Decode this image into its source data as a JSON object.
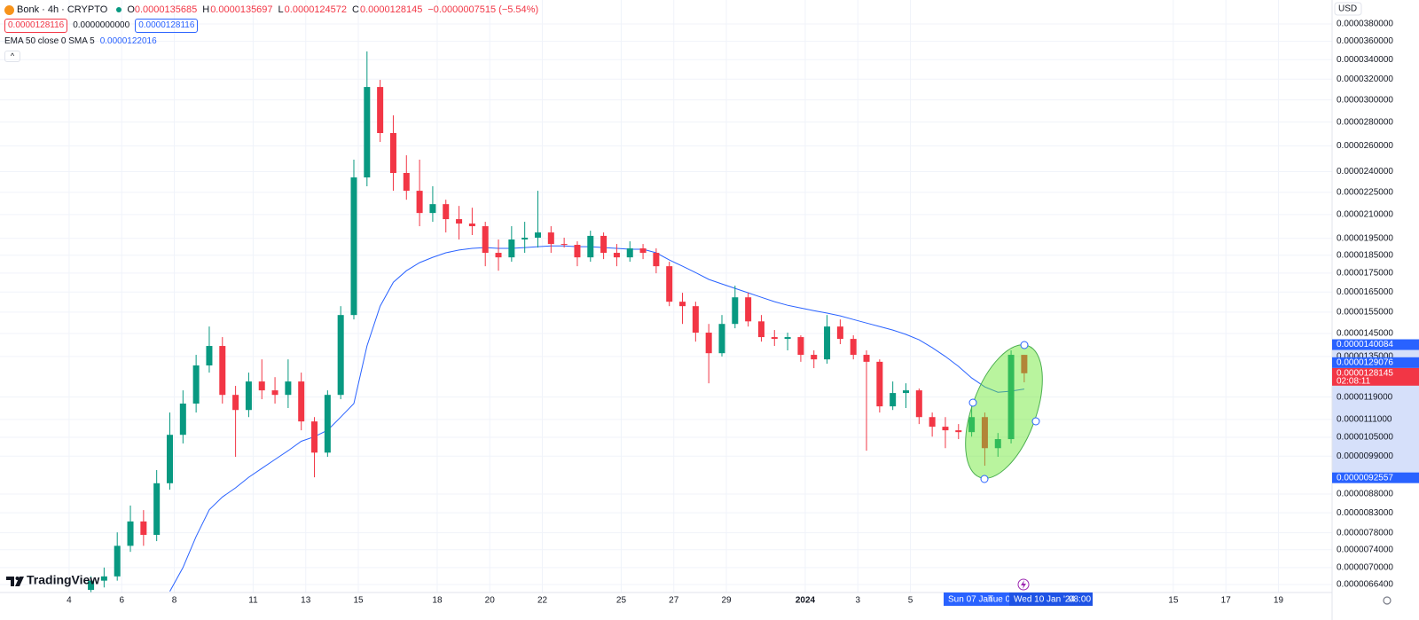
{
  "header": {
    "symbol": "Bonk · 4h · CRYPTO",
    "open_label": "O",
    "open": "0.0000135685",
    "high_label": "H",
    "high": "0.0000135697",
    "low_label": "L",
    "low": "0.0000124572",
    "close_label": "C",
    "close": "0.0000128145",
    "change": "−0.0000007515 (−5.54%)",
    "sell": "0.0000128116",
    "spread": "0.0000000000",
    "buy": "0.0000128116"
  },
  "currency": "USD",
  "brand": "TradingView",
  "time_labels": {
    "range_start": "Sun 07 Jan",
    "range_mid": "Tue 09",
    "cursor_date": "Wed 10 Jan '24",
    "cursor_time": "08:00"
  },
  "chart_data": {
    "type": "candlestick",
    "log_scale": true,
    "grid": true,
    "up_color": "#089981",
    "down_color": "#f23645",
    "xlim": [
      1.37,
      52.04
    ],
    "ylim": [
      6.477e-06,
      4.094e-05
    ],
    "xticks": [
      4,
      6,
      8,
      11,
      13,
      15,
      18,
      20,
      22,
      25,
      27,
      29,
      {
        "value": 32,
        "label": "2024"
      },
      {
        "value": 34,
        "label": "3"
      },
      {
        "value": 36,
        "label": "5"
      },
      {
        "value": 46,
        "label": "15"
      },
      {
        "value": 48,
        "label": "17"
      },
      {
        "value": 50,
        "label": "19"
      }
    ],
    "yticks": [
      {
        "value": 3.8e-05,
        "label": "0.0000380000"
      },
      {
        "value": 3.6e-05,
        "label": "0.0000360000"
      },
      {
        "value": 3.4e-05,
        "label": "0.0000340000"
      },
      {
        "value": 3.2e-05,
        "label": "0.0000320000"
      },
      {
        "value": 3e-05,
        "label": "0.0000300000"
      },
      {
        "value": 2.8e-05,
        "label": "0.0000280000"
      },
      {
        "value": 2.6e-05,
        "label": "0.0000260000"
      },
      {
        "value": 2.4e-05,
        "label": "0.0000240000"
      },
      {
        "value": 2.25e-05,
        "label": "0.0000225000"
      },
      {
        "value": 2.1e-05,
        "label": "0.0000210000"
      },
      {
        "value": 1.95e-05,
        "label": "0.0000195000"
      },
      {
        "value": 1.85e-05,
        "label": "0.0000185000"
      },
      {
        "value": 1.75e-05,
        "label": "0.0000175000"
      },
      {
        "value": 1.65e-05,
        "label": "0.0000165000"
      },
      {
        "value": 1.55e-05,
        "label": "0.0000155000"
      },
      {
        "value": 1.45e-05,
        "label": "0.0000145000"
      },
      {
        "value": 1.35e-05,
        "label": "0.0000135000"
      },
      {
        "value": 1.19e-05,
        "label": "0.0000119000"
      },
      {
        "value": 1.11e-05,
        "label": "0.0000111000"
      },
      {
        "value": 1.05e-05,
        "label": "0.0000105000"
      },
      {
        "value": 9.9e-06,
        "label": "0.0000099000"
      },
      {
        "value": 8.8e-06,
        "label": "0.0000088000"
      },
      {
        "value": 8.3e-06,
        "label": "0.0000083000"
      },
      {
        "value": 7.8e-06,
        "label": "0.0000078000"
      },
      {
        "value": 7.4e-06,
        "label": "0.0000074000"
      },
      {
        "value": 7e-06,
        "label": "0.0000070000"
      },
      {
        "value": 6.64e-06,
        "label": "0.0000066400"
      }
    ],
    "x": [
      4.83,
      5.33,
      5.83,
      6.33,
      6.83,
      7.33,
      7.83,
      8.33,
      8.83,
      9.33,
      9.83,
      10.33,
      10.83,
      11.33,
      11.83,
      12.33,
      12.83,
      13.33,
      13.83,
      14.33,
      14.83,
      15.33,
      15.83,
      16.33,
      16.83,
      17.33,
      17.83,
      18.33,
      18.83,
      19.33,
      19.83,
      20.33,
      20.83,
      21.33,
      21.83,
      22.33,
      22.83,
      23.33,
      23.83,
      24.33,
      24.83,
      25.33,
      25.83,
      26.33,
      26.83,
      27.33,
      27.83,
      28.33,
      28.83,
      29.33,
      29.83,
      30.33,
      30.83,
      31.33,
      31.83,
      32.33,
      32.83,
      33.33,
      33.83,
      34.33,
      34.83,
      35.33,
      35.83,
      36.33,
      36.83,
      37.33,
      37.83,
      38.33,
      38.83,
      39.33,
      39.83,
      40.33
    ],
    "open": [
      6.53e-06,
      6.72e-06,
      6.81e-06,
      7.49e-06,
      8.08e-06,
      7.75e-06,
      9.1e-06,
      1.058e-05,
      1.166e-05,
      1.313e-05,
      1.395e-05,
      1.198e-05,
      1.143e-05,
      1.249e-05,
      1.215e-05,
      1.198e-05,
      1.249e-05,
      1.103e-05,
      1.001e-05,
      1.198e-05,
      1.536e-05,
      2.357e-05,
      3.123e-05,
      2.706e-05,
      2.39e-05,
      2.261e-05,
      2.11e-05,
      2.169e-05,
      2.07e-05,
      2.042e-05,
      2.025e-05,
      1.864e-05,
      1.838e-05,
      1.943e-05,
      1.954e-05,
      1.986e-05,
      1.916e-05,
      1.911e-05,
      1.838e-05,
      1.965e-05,
      1.864e-05,
      1.838e-05,
      1.89e-05,
      1.864e-05,
      1.788e-05,
      1.601e-05,
      1.579e-05,
      1.454e-05,
      1.364e-05,
      1.494e-05,
      1.623e-05,
      1.506e-05,
      1.434e-05,
      1.426e-05,
      1.434e-05,
      1.357e-05,
      1.338e-05,
      1.482e-05,
      1.426e-05,
      1.357e-05,
      1.328e-05,
      1.156e-05,
      1.205e-05,
      1.215e-05,
      1.118e-05,
      1.085e-05,
      1.073e-05,
      1.067e-05,
      1.118e-05,
      1.015e-05,
      1.044e-05,
      1.35685e-05
    ],
    "high": [
      6.81e-06,
      7e-06,
      7.81e-06,
      8.49e-06,
      8.37e-06,
      9.48e-06,
      1.134e-05,
      1.215e-05,
      1.357e-05,
      1.482e-05,
      1.434e-05,
      1.232e-05,
      1.284e-05,
      1.338e-05,
      1.266e-05,
      1.338e-05,
      1.284e-05,
      1.118e-05,
      1.215e-05,
      1.579e-05,
      2.491e-05,
      3.488e-05,
      3.193e-05,
      2.859e-05,
      2.525e-05,
      2.491e-05,
      2.293e-05,
      2.199e-05,
      2.157e-05,
      2.145e-05,
      2.053e-05,
      1.943e-05,
      2.025e-05,
      2.053e-05,
      2.261e-05,
      2.025e-05,
      1.954e-05,
      1.932e-05,
      1.997e-05,
      1.986e-05,
      1.916e-05,
      1.932e-05,
      1.916e-05,
      1.89e-05,
      1.813e-05,
      1.646e-05,
      1.601e-05,
      1.494e-05,
      1.536e-05,
      1.683e-05,
      1.646e-05,
      1.536e-05,
      1.466e-05,
      1.454e-05,
      1.442e-05,
      1.376e-05,
      1.536e-05,
      1.515e-05,
      1.442e-05,
      1.376e-05,
      1.338e-05,
      1.249e-05,
      1.242e-05,
      1.222e-05,
      1.134e-05,
      1.118e-05,
      1.094e-05,
      1.166e-05,
      1.134e-05,
      1.064e-05,
      1.376e-05,
      1.35697e-05
    ],
    "low": [
      6.41e-06,
      6.58e-06,
      6.72e-06,
      7.35e-06,
      7.49e-06,
      7.6e-06,
      8.92e-06,
      1.03e-05,
      1.134e-05,
      1.284e-05,
      1.166e-05,
      9.88e-06,
      1.118e-05,
      1.182e-05,
      1.166e-05,
      1.15e-05,
      1.073e-05,
      9.27e-06,
      9.88e-06,
      1.182e-05,
      1.515e-05,
      2.293e-05,
      2.632e-05,
      2.261e-05,
      2.199e-05,
      2.025e-05,
      2.053e-05,
      1.986e-05,
      1.943e-05,
      1.97e-05,
      1.788e-05,
      1.763e-05,
      1.813e-05,
      1.864e-05,
      1.895e-05,
      1.864e-05,
      1.895e-05,
      1.788e-05,
      1.813e-05,
      1.828e-05,
      1.788e-05,
      1.813e-05,
      1.828e-05,
      1.749e-05,
      1.579e-05,
      1.494e-05,
      1.414e-05,
      1.242e-05,
      1.35e-05,
      1.474e-05,
      1.482e-05,
      1.414e-05,
      1.395e-05,
      1.376e-05,
      1.328e-05,
      1.302e-05,
      1.32e-05,
      1.403e-05,
      1.338e-05,
      1.007e-05,
      1.134e-05,
      1.143e-05,
      1.15e-05,
      1.094e-05,
      1.052e-05,
      1.015e-05,
      1.044e-05,
      1.052e-05,
      9.61e-06,
      9.88e-06,
      1.03e-05,
      1.24572e-05
    ],
    "close": [
      6.72e-06,
      6.81e-06,
      7.49e-06,
      8.08e-06,
      7.75e-06,
      9.1e-06,
      1.058e-05,
      1.166e-05,
      1.313e-05,
      1.395e-05,
      1.198e-05,
      1.143e-05,
      1.249e-05,
      1.215e-05,
      1.198e-05,
      1.249e-05,
      1.103e-05,
      1.001e-05,
      1.198e-05,
      1.536e-05,
      2.357e-05,
      3.123e-05,
      2.706e-05,
      2.39e-05,
      2.261e-05,
      2.11e-05,
      2.169e-05,
      2.07e-05,
      2.042e-05,
      2.025e-05,
      1.864e-05,
      1.838e-05,
      1.943e-05,
      1.954e-05,
      1.986e-05,
      1.916e-05,
      1.911e-05,
      1.838e-05,
      1.965e-05,
      1.864e-05,
      1.838e-05,
      1.89e-05,
      1.864e-05,
      1.788e-05,
      1.601e-05,
      1.579e-05,
      1.454e-05,
      1.364e-05,
      1.494e-05,
      1.623e-05,
      1.506e-05,
      1.434e-05,
      1.426e-05,
      1.434e-05,
      1.357e-05,
      1.338e-05,
      1.482e-05,
      1.426e-05,
      1.357e-05,
      1.328e-05,
      1.156e-05,
      1.205e-05,
      1.215e-05,
      1.118e-05,
      1.085e-05,
      1.073e-05,
      1.067e-05,
      1.118e-05,
      1.015e-05,
      1.044e-05,
      1.357e-05,
      1.28145e-05
    ],
    "indicator": {
      "name": "EMA 50 close 0 SMA 5",
      "value_label": "0.0000122016",
      "color": "#2962ff",
      "values": [
        null,
        null,
        null,
        null,
        null,
        null,
        6.5e-06,
        7e-06,
        7.71e-06,
        8.38e-06,
        8.72e-06,
        8.97e-06,
        9.27e-06,
        9.53e-06,
        9.8e-06,
        1.007e-05,
        1.037e-05,
        1.052e-05,
        1.073e-05,
        1.118e-05,
        1.166e-05,
        1.395e-05,
        1.579e-05,
        1.701e-05,
        1.763e-05,
        1.808e-05,
        1.838e-05,
        1.864e-05,
        1.88e-05,
        1.89e-05,
        1.895e-05,
        1.89e-05,
        1.89e-05,
        1.895e-05,
        1.9e-05,
        1.905e-05,
        1.905e-05,
        1.9e-05,
        1.9e-05,
        1.895e-05,
        1.89e-05,
        1.885e-05,
        1.885e-05,
        1.864e-05,
        1.823e-05,
        1.788e-05,
        1.753e-05,
        1.716e-05,
        1.692e-05,
        1.669e-05,
        1.646e-05,
        1.623e-05,
        1.601e-05,
        1.583e-05,
        1.57e-05,
        1.557e-05,
        1.545e-05,
        1.532e-05,
        1.515e-05,
        1.498e-05,
        1.482e-05,
        1.466e-05,
        1.446e-05,
        1.422e-05,
        1.388e-05,
        1.35e-05,
        1.309e-05,
        1.263e-05,
        1.228e-05,
        1.208e-05,
        1.212e-05,
        1.22016e-05
      ]
    },
    "price_labels": [
      {
        "value": 1.40084e-05,
        "label": "0.0000140084",
        "color": "#2962ff"
      },
      {
        "value": 1.29076e-05,
        "label": "0.0000129076",
        "color": "#2962ff"
      },
      {
        "value": 1.28145e-05,
        "label": "0.0000128145",
        "color": "#f23645",
        "countdown": "02:08:11"
      },
      {
        "value": 9.2557e-06,
        "label": "0.0000092557",
        "color": "#2962ff"
      }
    ]
  }
}
